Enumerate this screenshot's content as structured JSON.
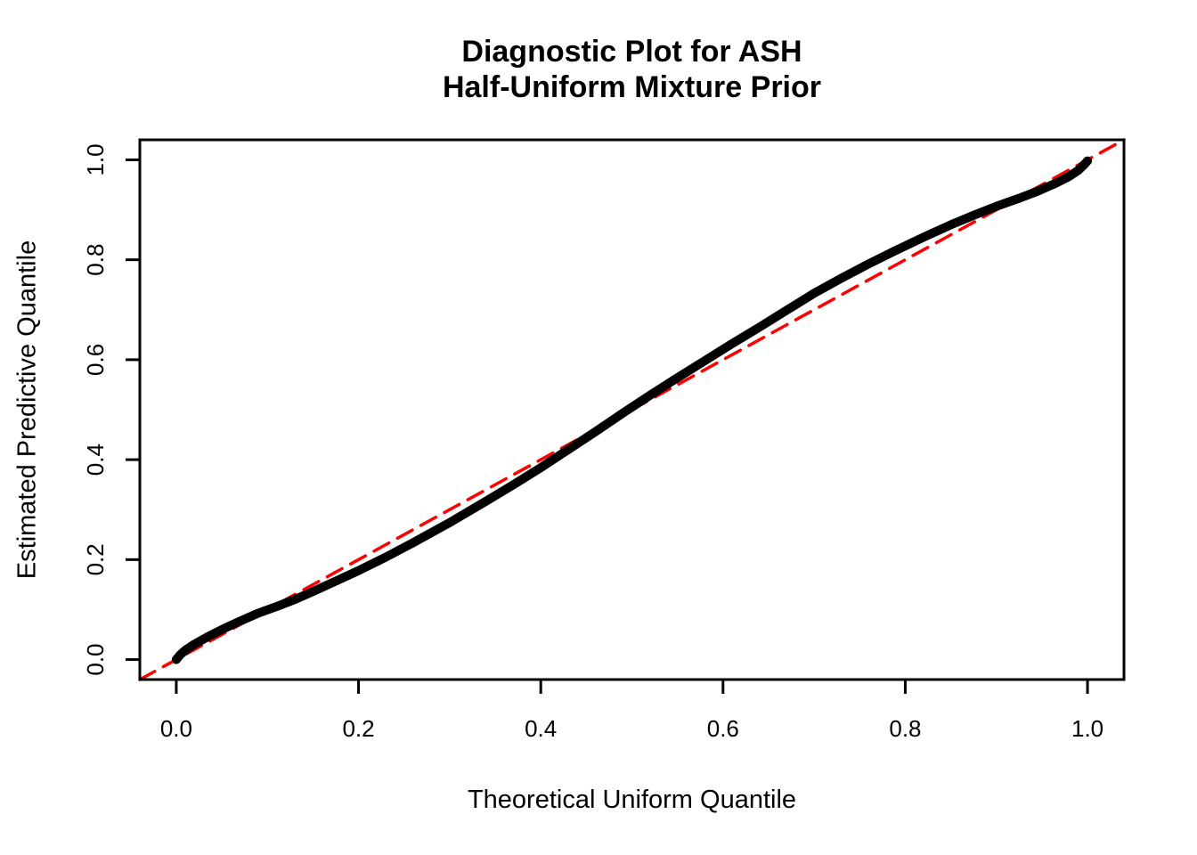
{
  "title": {
    "line1": "Diagnostic Plot for ASH",
    "line2": "Half-Uniform Mixture Prior"
  },
  "axes": {
    "x": {
      "label": "Theoretical Uniform Quantile",
      "ticks": [
        "0.0",
        "0.2",
        "0.4",
        "0.6",
        "0.8",
        "1.0"
      ],
      "tick_values": [
        0.0,
        0.2,
        0.4,
        0.6,
        0.8,
        1.0
      ]
    },
    "y": {
      "label": "Estimated Predictive Quantile",
      "ticks": [
        "0.0",
        "0.2",
        "0.4",
        "0.6",
        "0.8",
        "1.0"
      ],
      "tick_values": [
        0.0,
        0.2,
        0.4,
        0.6,
        0.8,
        1.0
      ]
    }
  },
  "colors": {
    "curve": "#000000",
    "reference_line": "#FF0000",
    "frame": "#000000",
    "background": "#FFFFFF",
    "text": "#000000"
  },
  "chart_data": {
    "type": "line",
    "title": "Diagnostic Plot for ASH\nHalf-Uniform Mixture Prior",
    "xlabel": "Theoretical Uniform Quantile",
    "ylabel": "Estimated Predictive Quantile",
    "xlim": [
      -0.04,
      1.04
    ],
    "ylim": [
      -0.04,
      1.04
    ],
    "x_ticks": [
      0.0,
      0.2,
      0.4,
      0.6,
      0.8,
      1.0
    ],
    "y_ticks": [
      0.0,
      0.2,
      0.4,
      0.6,
      0.8,
      1.0
    ],
    "grid": false,
    "legend": false,
    "series": [
      {
        "name": "reference-diagonal",
        "type": "line",
        "style": "dashed",
        "color": "#FF0000",
        "stroke_width": 3.5,
        "x": [
          -0.04,
          1.04
        ],
        "y": [
          -0.04,
          1.04
        ]
      },
      {
        "name": "estimated-vs-theoretical-quantile",
        "type": "line",
        "style": "solid",
        "color": "#000000",
        "stroke_width": 10,
        "x": [
          0.0,
          0.004,
          0.01,
          0.02,
          0.035,
          0.05,
          0.07,
          0.09,
          0.11,
          0.13,
          0.15,
          0.175,
          0.2,
          0.23,
          0.26,
          0.3,
          0.34,
          0.37,
          0.4,
          0.43,
          0.46,
          0.49,
          0.52,
          0.55,
          0.58,
          0.61,
          0.64,
          0.67,
          0.7,
          0.73,
          0.76,
          0.79,
          0.82,
          0.85,
          0.875,
          0.9,
          0.925,
          0.945,
          0.965,
          0.98,
          0.99,
          0.996,
          1.0
        ],
        "y": [
          0.0,
          0.009,
          0.019,
          0.031,
          0.046,
          0.06,
          0.077,
          0.093,
          0.106,
          0.12,
          0.136,
          0.157,
          0.178,
          0.205,
          0.234,
          0.274,
          0.317,
          0.35,
          0.384,
          0.42,
          0.456,
          0.493,
          0.529,
          0.564,
          0.598,
          0.632,
          0.665,
          0.699,
          0.733,
          0.763,
          0.792,
          0.819,
          0.845,
          0.87,
          0.889,
          0.907,
          0.923,
          0.937,
          0.953,
          0.967,
          0.979,
          0.99,
          0.998
        ]
      }
    ]
  }
}
